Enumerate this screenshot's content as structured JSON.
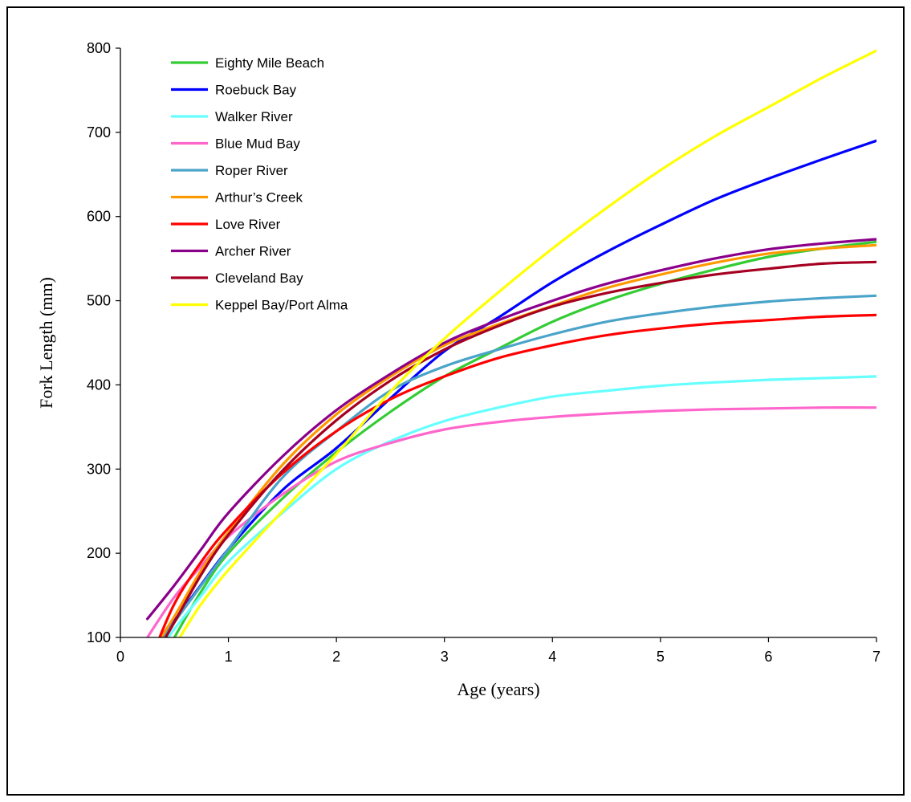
{
  "chart_data": {
    "type": "line",
    "title": "",
    "xlabel": "Age (years)",
    "ylabel": "Fork Length (mm)",
    "xlim": [
      0,
      7
    ],
    "ylim": [
      100,
      800
    ],
    "x_ticks": [
      "0",
      "1",
      "2",
      "3",
      "4",
      "5",
      "6",
      "7"
    ],
    "y_ticks": [
      "100",
      "200",
      "300",
      "400",
      "500",
      "600",
      "700",
      "800"
    ],
    "grid": false,
    "legend_position": "top-left",
    "series": [
      {
        "name": "Eighty Mile Beach",
        "color": "#33cc33",
        "x": [
          0.4,
          0.5,
          0.75,
          1,
          1.5,
          2,
          2.5,
          3,
          3.5,
          4,
          4.5,
          5,
          5.5,
          6,
          6.5,
          7
        ],
        "values": [
          77,
          100,
          155,
          200,
          265,
          320,
          368,
          410,
          443,
          475,
          500,
          520,
          537,
          552,
          562,
          570
        ]
      },
      {
        "name": "Roebuck Bay",
        "color": "#0000ff",
        "x": [
          0.3,
          0.5,
          0.75,
          1,
          1.5,
          2,
          2.5,
          3,
          3.5,
          4,
          4.5,
          5,
          5.5,
          6,
          6.5,
          7
        ],
        "values": [
          85,
          120,
          163,
          205,
          275,
          325,
          384,
          440,
          480,
          522,
          558,
          590,
          620,
          645,
          668,
          690
        ]
      },
      {
        "name": "Walker River",
        "color": "#66ffff",
        "x": [
          0.3,
          0.5,
          0.75,
          1,
          1.5,
          2,
          2.5,
          3,
          3.5,
          4,
          4.5,
          5,
          5.5,
          6,
          6.5,
          7
        ],
        "values": [
          75,
          110,
          150,
          190,
          248,
          300,
          333,
          357,
          373,
          386,
          393,
          399,
          403,
          406,
          408,
          410
        ]
      },
      {
        "name": "Blue Mud Bay",
        "color": "#ff66cc",
        "x": [
          0.25,
          0.5,
          0.75,
          1,
          1.5,
          2,
          2.5,
          3,
          3.5,
          4,
          4.5,
          5,
          5.5,
          6,
          6.5,
          7
        ],
        "values": [
          100,
          148,
          185,
          220,
          270,
          309,
          331,
          347,
          356,
          362,
          366,
          369,
          371,
          372,
          373,
          373
        ]
      },
      {
        "name": "Roper River",
        "color": "#4aa3c9",
        "x": [
          0.35,
          0.5,
          0.75,
          1,
          1.5,
          2,
          2.5,
          3,
          3.5,
          4,
          4.5,
          5,
          5.5,
          6,
          6.5,
          7
        ],
        "values": [
          90,
          118,
          162,
          205,
          290,
          345,
          393,
          422,
          442,
          460,
          475,
          485,
          493,
          499,
          503,
          506
        ]
      },
      {
        "name": "Arthur’s Creek",
        "color": "#ff9900",
        "x": [
          0.3,
          0.5,
          0.75,
          1,
          1.5,
          2,
          2.5,
          3,
          3.5,
          4,
          4.5,
          5,
          5.5,
          6,
          6.5,
          7
        ],
        "values": [
          85,
          125,
          180,
          225,
          305,
          365,
          410,
          447,
          472,
          494,
          515,
          531,
          545,
          556,
          562,
          566
        ]
      },
      {
        "name": "Love River",
        "color": "#ff0000",
        "x": [
          0.3,
          0.5,
          0.75,
          1,
          1.5,
          2,
          2.5,
          3,
          3.5,
          4,
          4.5,
          5,
          5.5,
          6,
          6.5,
          7
        ],
        "values": [
          80,
          140,
          190,
          230,
          295,
          345,
          383,
          410,
          432,
          447,
          459,
          467,
          473,
          477,
          481,
          483
        ]
      },
      {
        "name": "Archer River",
        "color": "#8b008b",
        "x": [
          0.25,
          0.5,
          0.75,
          1,
          1.5,
          2,
          2.5,
          3,
          3.5,
          4,
          4.5,
          5,
          5.5,
          6,
          6.5,
          7
        ],
        "values": [
          122,
          162,
          205,
          248,
          315,
          370,
          413,
          450,
          477,
          500,
          520,
          536,
          550,
          561,
          568,
          573
        ]
      },
      {
        "name": "Cleveland Bay",
        "color": "#a50021",
        "x": [
          0.35,
          0.5,
          0.75,
          1,
          1.5,
          2,
          2.5,
          3,
          3.5,
          4,
          4.5,
          5,
          5.5,
          6,
          6.5,
          7
        ],
        "values": [
          85,
          118,
          175,
          222,
          298,
          358,
          405,
          442,
          470,
          493,
          509,
          521,
          531,
          538,
          544,
          546
        ]
      },
      {
        "name": "Keppel Bay/Port Alma",
        "color": "#ffff00",
        "x": [
          0.55,
          0.75,
          1,
          1.5,
          2,
          2.5,
          3,
          3.5,
          4,
          4.5,
          5,
          5.5,
          6,
          6.5,
          7
        ],
        "values": [
          100,
          140,
          180,
          250,
          318,
          392,
          455,
          510,
          562,
          610,
          655,
          695,
          730,
          765,
          797
        ]
      }
    ]
  }
}
